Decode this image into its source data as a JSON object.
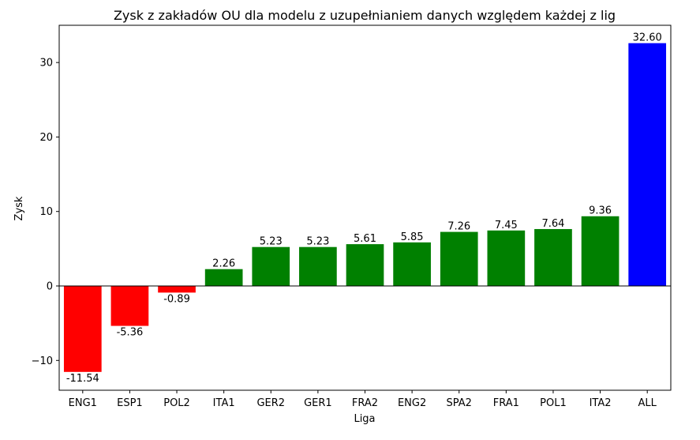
{
  "chart_data": {
    "type": "bar",
    "title": "Zysk z zakładów OU dla modelu z uzupełnianiem danych względem każdej z lig",
    "xlabel": "Liga",
    "ylabel": "Zysk",
    "ylim": [
      -14,
      35
    ],
    "yticks": [
      -10,
      0,
      10,
      20,
      30
    ],
    "ytick_labels": [
      "−10",
      "0",
      "10",
      "20",
      "30"
    ],
    "categories": [
      "ENG1",
      "ESP1",
      "POL2",
      "ITA1",
      "GER2",
      "GER1",
      "FRA2",
      "ENG2",
      "SPA2",
      "FRA1",
      "POL1",
      "ITA2",
      "ALL"
    ],
    "values": [
      -11.54,
      -5.36,
      -0.89,
      2.26,
      5.23,
      5.23,
      5.61,
      5.85,
      7.26,
      7.45,
      7.64,
      9.36,
      32.6
    ],
    "value_labels": [
      "-11.54",
      "-5.36",
      "-0.89",
      "2.26",
      "5.23",
      "5.23",
      "5.61",
      "5.85",
      "7.26",
      "7.45",
      "7.64",
      "9.36",
      "32.60"
    ],
    "colors": [
      "#ff0000",
      "#ff0000",
      "#ff0000",
      "#008000",
      "#008000",
      "#008000",
      "#008000",
      "#008000",
      "#008000",
      "#008000",
      "#008000",
      "#008000",
      "#0000ff"
    ],
    "zero_line": true,
    "grid": false,
    "legend": false
  }
}
